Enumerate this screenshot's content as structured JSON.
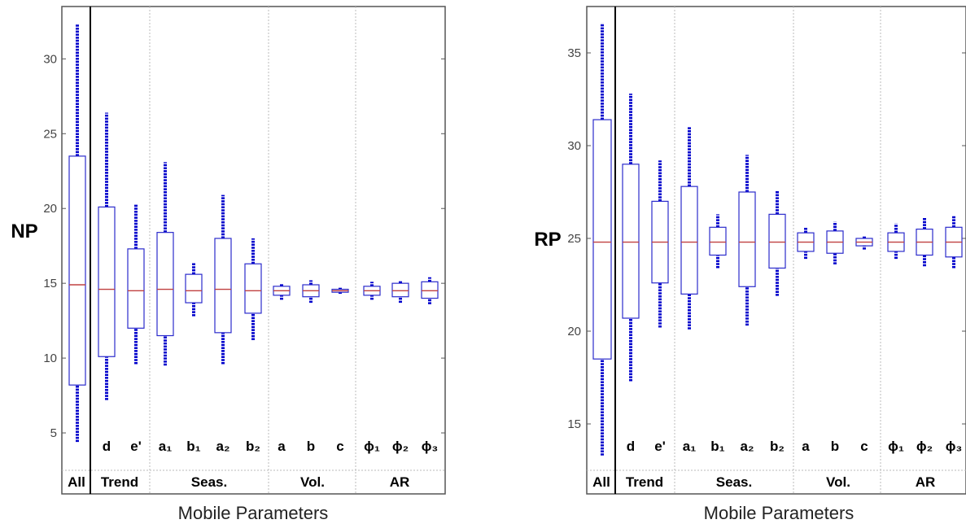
{
  "colors": {
    "box": "#2b2bcc",
    "median": "#c04040",
    "outlier": "#0000cc",
    "frame": "#555555",
    "divider": "#bbbbbb"
  },
  "chart_data": [
    {
      "type": "box",
      "title": "",
      "xlabel": "Mobile Parameters",
      "ylabel": "NP",
      "ylim": [
        2.5,
        33.5
      ],
      "yticks": [
        5,
        10,
        15,
        20,
        25,
        30
      ],
      "grid": false,
      "groups": [
        "All",
        "Trend",
        "Seas.",
        "Vol.",
        "AR"
      ],
      "boxes": [
        {
          "label": "",
          "group": "All",
          "q1": 8.2,
          "median": 14.9,
          "q3": 23.5,
          "whislo": 8.2,
          "whishi": 23.5,
          "out_lo": 4.4,
          "out_hi": 32.3
        },
        {
          "label": "d",
          "group": "Trend",
          "q1": 10.1,
          "median": 14.6,
          "q3": 20.1,
          "whislo": 10.1,
          "whishi": 20.1,
          "out_lo": 7.2,
          "out_hi": 26.4
        },
        {
          "label": "e'",
          "group": "Trend",
          "q1": 12.0,
          "median": 14.5,
          "q3": 17.3,
          "whislo": 12.0,
          "whishi": 17.3,
          "out_lo": 9.6,
          "out_hi": 20.3
        },
        {
          "label": "a₁",
          "group": "Seas.",
          "q1": 11.5,
          "median": 14.6,
          "q3": 18.4,
          "whislo": 11.5,
          "whishi": 18.4,
          "out_lo": 9.5,
          "out_hi": 23.1
        },
        {
          "label": "b₁",
          "group": "Seas.",
          "q1": 13.7,
          "median": 14.5,
          "q3": 15.6,
          "whislo": 13.7,
          "whishi": 15.6,
          "out_lo": 12.8,
          "out_hi": 16.4
        },
        {
          "label": "a₂",
          "group": "Seas.",
          "q1": 11.7,
          "median": 14.6,
          "q3": 18.0,
          "whislo": 11.7,
          "whishi": 18.0,
          "out_lo": 9.6,
          "out_hi": 20.9
        },
        {
          "label": "b₂",
          "group": "Seas.",
          "q1": 13.0,
          "median": 14.5,
          "q3": 16.3,
          "whislo": 13.0,
          "whishi": 16.3,
          "out_lo": 11.2,
          "out_hi": 18.0
        },
        {
          "label": "a",
          "group": "Vol.",
          "q1": 14.2,
          "median": 14.5,
          "q3": 14.8,
          "whislo": 14.2,
          "whishi": 14.8,
          "out_lo": 13.9,
          "out_hi": 15.0
        },
        {
          "label": "b",
          "group": "Vol.",
          "q1": 14.1,
          "median": 14.5,
          "q3": 14.9,
          "whislo": 14.1,
          "whishi": 14.9,
          "out_lo": 13.7,
          "out_hi": 15.2
        },
        {
          "label": "c",
          "group": "Vol.",
          "q1": 14.4,
          "median": 14.5,
          "q3": 14.6,
          "whislo": 14.4,
          "whishi": 14.6,
          "out_lo": 14.3,
          "out_hi": 14.7
        },
        {
          "label": "ϕ₁",
          "group": "AR",
          "q1": 14.2,
          "median": 14.5,
          "q3": 14.8,
          "whislo": 14.2,
          "whishi": 14.8,
          "out_lo": 13.9,
          "out_hi": 15.1
        },
        {
          "label": "ϕ₂",
          "group": "AR",
          "q1": 14.1,
          "median": 14.5,
          "q3": 15.0,
          "whislo": 14.1,
          "whishi": 15.0,
          "out_lo": 13.7,
          "out_hi": 15.2
        },
        {
          "label": "ϕ₃",
          "group": "AR",
          "q1": 14.0,
          "median": 14.5,
          "q3": 15.1,
          "whislo": 14.0,
          "whishi": 15.1,
          "out_lo": 13.6,
          "out_hi": 15.4
        }
      ]
    },
    {
      "type": "box",
      "title": "",
      "xlabel": "Mobile Parameters",
      "ylabel": "RP",
      "ylim": [
        12.5,
        37.5
      ],
      "yticks": [
        15,
        20,
        25,
        30,
        35
      ],
      "grid": false,
      "groups": [
        "All",
        "Trend",
        "Seas.",
        "Vol.",
        "AR"
      ],
      "boxes": [
        {
          "label": "",
          "group": "All",
          "q1": 18.5,
          "median": 24.8,
          "q3": 31.4,
          "whislo": 18.5,
          "whishi": 31.4,
          "out_lo": 13.3,
          "out_hi": 36.6
        },
        {
          "label": "d",
          "group": "Trend",
          "q1": 20.7,
          "median": 24.8,
          "q3": 29.0,
          "whislo": 20.7,
          "whishi": 29.0,
          "out_lo": 17.3,
          "out_hi": 32.8
        },
        {
          "label": "e'",
          "group": "Trend",
          "q1": 22.6,
          "median": 24.8,
          "q3": 27.0,
          "whislo": 22.6,
          "whishi": 27.0,
          "out_lo": 20.2,
          "out_hi": 29.2
        },
        {
          "label": "a₁",
          "group": "Seas.",
          "q1": 22.0,
          "median": 24.8,
          "q3": 27.8,
          "whislo": 22.0,
          "whishi": 27.8,
          "out_lo": 20.1,
          "out_hi": 31.0
        },
        {
          "label": "b₁",
          "group": "Seas.",
          "q1": 24.1,
          "median": 24.8,
          "q3": 25.6,
          "whislo": 24.1,
          "whishi": 25.6,
          "out_lo": 23.4,
          "out_hi": 26.3
        },
        {
          "label": "a₂",
          "group": "Seas.",
          "q1": 22.4,
          "median": 24.8,
          "q3": 27.5,
          "whislo": 22.4,
          "whishi": 27.5,
          "out_lo": 20.3,
          "out_hi": 29.5
        },
        {
          "label": "b₂",
          "group": "Seas.",
          "q1": 23.4,
          "median": 24.8,
          "q3": 26.3,
          "whislo": 23.4,
          "whishi": 26.3,
          "out_lo": 21.9,
          "out_hi": 27.6
        },
        {
          "label": "a",
          "group": "Vol.",
          "q1": 24.3,
          "median": 24.8,
          "q3": 25.3,
          "whislo": 24.3,
          "whishi": 25.3,
          "out_lo": 23.9,
          "out_hi": 25.6
        },
        {
          "label": "b",
          "group": "Vol.",
          "q1": 24.2,
          "median": 24.8,
          "q3": 25.4,
          "whislo": 24.2,
          "whishi": 25.4,
          "out_lo": 23.6,
          "out_hi": 25.9
        },
        {
          "label": "c",
          "group": "Vol.",
          "q1": 24.6,
          "median": 24.8,
          "q3": 25.0,
          "whislo": 24.6,
          "whishi": 25.0,
          "out_lo": 24.4,
          "out_hi": 25.1
        },
        {
          "label": "ϕ₁",
          "group": "AR",
          "q1": 24.3,
          "median": 24.8,
          "q3": 25.3,
          "whislo": 24.3,
          "whishi": 25.3,
          "out_lo": 23.9,
          "out_hi": 25.8
        },
        {
          "label": "ϕ₂",
          "group": "AR",
          "q1": 24.1,
          "median": 24.8,
          "q3": 25.5,
          "whislo": 24.1,
          "whishi": 25.5,
          "out_lo": 23.5,
          "out_hi": 26.1
        },
        {
          "label": "ϕ₃",
          "group": "AR",
          "q1": 24.0,
          "median": 24.8,
          "q3": 25.6,
          "whislo": 24.0,
          "whishi": 25.6,
          "out_lo": 23.4,
          "out_hi": 26.2
        }
      ]
    }
  ]
}
